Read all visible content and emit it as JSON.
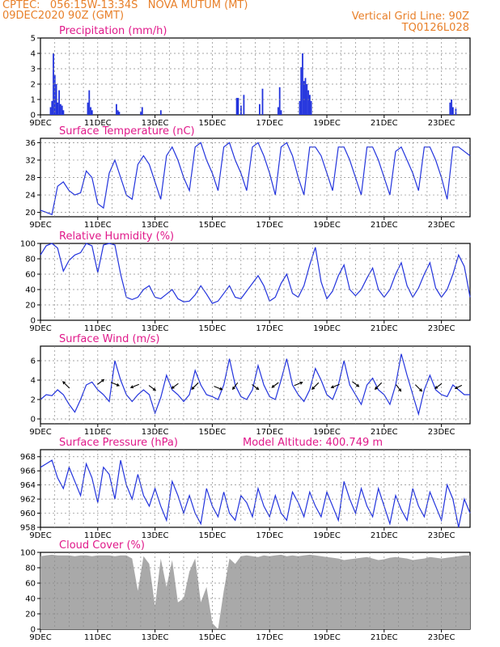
{
  "header": {
    "line1_left": "CPTEC:   056:15W-13:34S   NOVA MUTUM (MT)",
    "line2_left": "09DEC2020 90Z (GMT)",
    "line1_right": "Vertical Grid Line: 90Z",
    "line2_right": "TQ0126L028"
  },
  "colors": {
    "header": "#e8802a",
    "panel_title": "#e0198a",
    "series": "#2233dd",
    "cloud": "#a9a9a9",
    "grid": "#888888"
  },
  "x_labels": [
    "9DEC",
    "11DEC",
    "13DEC",
    "15DEC",
    "17DEC",
    "19DEC",
    "21DEC",
    "23DEC"
  ],
  "x_range_days": [
    0,
    15
  ],
  "panels": {
    "precip": {
      "title": "Precipitation (mm/h)",
      "yticks": [
        "0",
        "1",
        "2",
        "3",
        "4",
        "5"
      ]
    },
    "temp": {
      "title": "Surface Temperature (nC)",
      "yticks": [
        "20",
        "24",
        "28",
        "32",
        "36"
      ]
    },
    "rh": {
      "title": "Relative Humidity (%)",
      "yticks": [
        "0",
        "20",
        "40",
        "60",
        "80",
        "100"
      ]
    },
    "wind": {
      "title": "Surface Wind (m/s)",
      "yticks": [
        "0",
        "2",
        "4",
        "6"
      ]
    },
    "pres": {
      "title": "Surface Pressure (hPa)",
      "subtitle": "Model Altitude: 400.749 m",
      "yticks": [
        "958",
        "960",
        "962",
        "964",
        "966",
        "968"
      ]
    },
    "cloud": {
      "title": "Cloud Cover (%)",
      "yticks": [
        "0",
        "20",
        "40",
        "60",
        "80",
        "100"
      ]
    }
  },
  "chart_data": [
    {
      "type": "bar",
      "title": "Precipitation (mm/h)",
      "x_unit": "days since 09DEC2020 00Z",
      "ylim": [
        0,
        5
      ],
      "x": [
        0.35,
        0.4,
        0.45,
        0.5,
        0.55,
        0.6,
        0.65,
        0.7,
        0.75,
        0.8,
        1.65,
        1.7,
        1.75,
        1.8,
        2.65,
        2.7,
        2.75,
        3.5,
        3.55,
        4.2,
        6.85,
        6.9,
        7.0,
        7.1,
        7.65,
        7.75,
        8.3,
        8.35,
        8.4,
        9.05,
        9.1,
        9.15,
        9.2,
        9.25,
        9.3,
        9.35,
        9.4,
        9.45,
        14.3,
        14.35,
        14.4,
        14.5
      ],
      "values": [
        0.5,
        0.9,
        4.0,
        2.6,
        2.0,
        0.8,
        1.6,
        0.7,
        0.6,
        0.3,
        0.8,
        1.6,
        0.5,
        0.3,
        0.7,
        0.3,
        0.2,
        0.2,
        0.5,
        0.3,
        1.1,
        1.1,
        0.6,
        1.3,
        0.7,
        1.7,
        0.5,
        1.8,
        0.3,
        0.9,
        3.1,
        4.0,
        2.2,
        2.4,
        2.0,
        1.6,
        1.3,
        0.9,
        0.8,
        1.0,
        0.5,
        0.4
      ]
    },
    {
      "type": "line",
      "title": "Surface Temperature (nC)",
      "ylim": [
        19,
        37
      ],
      "x": [
        0,
        0.2,
        0.4,
        0.6,
        0.8,
        1.0,
        1.2,
        1.4,
        1.6,
        1.8,
        2.0,
        2.2,
        2.4,
        2.6,
        2.8,
        3.0,
        3.2,
        3.4,
        3.6,
        3.8,
        4.0,
        4.2,
        4.4,
        4.6,
        4.8,
        5.0,
        5.2,
        5.4,
        5.6,
        5.8,
        6.0,
        6.2,
        6.4,
        6.6,
        6.8,
        7.0,
        7.2,
        7.4,
        7.6,
        7.8,
        8.0,
        8.2,
        8.4,
        8.6,
        8.8,
        9.0,
        9.2,
        9.4,
        9.6,
        9.8,
        10.0,
        10.2,
        10.4,
        10.6,
        10.8,
        11.0,
        11.2,
        11.4,
        11.6,
        11.8,
        12.0,
        12.2,
        12.4,
        12.6,
        12.8,
        13.0,
        13.2,
        13.4,
        13.6,
        13.8,
        14.0,
        14.2,
        14.4,
        14.6,
        14.8,
        15.0
      ],
      "values": [
        20.5,
        20,
        19.5,
        26,
        27,
        25,
        24,
        24.5,
        29.5,
        28,
        22,
        21,
        29,
        32,
        28,
        24,
        23,
        31,
        33,
        31,
        27,
        23,
        33,
        35,
        32,
        28,
        25,
        35,
        36,
        32,
        29,
        25,
        35,
        36,
        32,
        29,
        25,
        35,
        36,
        33,
        29,
        24,
        35,
        36,
        33,
        28,
        24,
        35,
        35,
        33,
        29,
        25,
        35,
        35,
        32,
        28,
        24,
        35,
        35,
        32,
        28,
        24,
        34,
        35,
        32,
        29,
        25,
        35,
        35,
        32,
        28,
        23,
        35,
        35,
        34,
        33
      ]
    },
    {
      "type": "line",
      "title": "Relative Humidity (%)",
      "ylim": [
        0,
        100
      ],
      "x": [
        0,
        0.2,
        0.4,
        0.6,
        0.8,
        1.0,
        1.2,
        1.4,
        1.6,
        1.8,
        2.0,
        2.2,
        2.4,
        2.6,
        2.8,
        3.0,
        3.2,
        3.4,
        3.6,
        3.8,
        4.0,
        4.2,
        4.4,
        4.6,
        4.8,
        5.0,
        5.2,
        5.4,
        5.6,
        5.8,
        6.0,
        6.2,
        6.4,
        6.6,
        6.8,
        7.0,
        7.2,
        7.4,
        7.6,
        7.8,
        8.0,
        8.2,
        8.4,
        8.6,
        8.8,
        9.0,
        9.2,
        9.4,
        9.6,
        9.8,
        10.0,
        10.2,
        10.4,
        10.6,
        10.8,
        11.0,
        11.2,
        11.4,
        11.6,
        11.8,
        12.0,
        12.2,
        12.4,
        12.6,
        12.8,
        13.0,
        13.2,
        13.4,
        13.6,
        13.8,
        14.0,
        14.2,
        14.4,
        14.6,
        14.8,
        15.0
      ],
      "values": [
        85,
        97,
        100,
        94,
        64,
        78,
        85,
        88,
        100,
        97,
        62,
        98,
        100,
        98,
        60,
        30,
        27,
        30,
        40,
        45,
        30,
        28,
        34,
        40,
        28,
        24,
        25,
        33,
        45,
        34,
        22,
        25,
        35,
        45,
        30,
        28,
        38,
        48,
        58,
        45,
        25,
        30,
        48,
        60,
        35,
        30,
        45,
        72,
        95,
        50,
        28,
        38,
        58,
        72,
        40,
        32,
        40,
        55,
        68,
        40,
        30,
        40,
        60,
        75,
        45,
        30,
        42,
        60,
        75,
        42,
        30,
        40,
        60,
        85,
        70,
        30
      ]
    },
    {
      "type": "line",
      "title": "Surface Wind (m/s)",
      "ylim": [
        -0.5,
        7.5
      ],
      "x": [
        0,
        0.2,
        0.4,
        0.6,
        0.8,
        1.0,
        1.2,
        1.4,
        1.6,
        1.8,
        2.0,
        2.2,
        2.4,
        2.6,
        2.8,
        3.0,
        3.2,
        3.4,
        3.6,
        3.8,
        4.0,
        4.2,
        4.4,
        4.6,
        4.8,
        5.0,
        5.2,
        5.4,
        5.6,
        5.8,
        6.0,
        6.2,
        6.4,
        6.6,
        6.8,
        7.0,
        7.2,
        7.4,
        7.6,
        7.8,
        8.0,
        8.2,
        8.4,
        8.6,
        8.8,
        9.0,
        9.2,
        9.4,
        9.6,
        9.8,
        10.0,
        10.2,
        10.4,
        10.6,
        10.8,
        11.0,
        11.2,
        11.4,
        11.6,
        11.8,
        12.0,
        12.2,
        12.4,
        12.6,
        12.8,
        13.0,
        13.2,
        13.4,
        13.6,
        13.8,
        14.0,
        14.2,
        14.4,
        14.6,
        14.8,
        15.0
      ],
      "values": [
        2,
        2.5,
        2.4,
        3,
        2.5,
        1.5,
        0.7,
        2,
        3.5,
        3.8,
        3,
        2.5,
        1.8,
        6,
        4,
        2.5,
        1.8,
        2.5,
        3,
        2.5,
        0.6,
        2.2,
        4.5,
        3,
        2.5,
        1.8,
        2.5,
        5,
        3.5,
        2.5,
        2.3,
        2,
        3.5,
        6.2,
        3.5,
        2.3,
        2,
        3,
        5.5,
        3.5,
        2.3,
        2,
        4,
        6.2,
        3.5,
        2.5,
        1.8,
        3,
        5.2,
        4,
        2.5,
        2,
        3.5,
        6,
        3.5,
        2.5,
        1.5,
        3.5,
        4.2,
        3,
        2.5,
        1.5,
        3.5,
        6.7,
        4.5,
        2.5,
        0.5,
        3,
        4.5,
        3,
        2.5,
        2.3,
        3.5,
        3,
        2.5,
        2.5
      ]
    },
    {
      "type": "line",
      "title": "Surface Pressure (hPa)",
      "ylim": [
        958,
        969
      ],
      "x": [
        0,
        0.2,
        0.4,
        0.6,
        0.8,
        1.0,
        1.2,
        1.4,
        1.6,
        1.8,
        2.0,
        2.2,
        2.4,
        2.6,
        2.8,
        3.0,
        3.2,
        3.4,
        3.6,
        3.8,
        4.0,
        4.2,
        4.4,
        4.6,
        4.8,
        5.0,
        5.2,
        5.4,
        5.6,
        5.8,
        6.0,
        6.2,
        6.4,
        6.6,
        6.8,
        7.0,
        7.2,
        7.4,
        7.6,
        7.8,
        8.0,
        8.2,
        8.4,
        8.6,
        8.8,
        9.0,
        9.2,
        9.4,
        9.6,
        9.8,
        10.0,
        10.2,
        10.4,
        10.6,
        10.8,
        11.0,
        11.2,
        11.4,
        11.6,
        11.8,
        12.0,
        12.2,
        12.4,
        12.6,
        12.8,
        13.0,
        13.2,
        13.4,
        13.6,
        13.8,
        14.0,
        14.2,
        14.4,
        14.6,
        14.8,
        15.0
      ],
      "values": [
        966.5,
        967,
        967.5,
        965,
        963.5,
        966.5,
        964.5,
        962.5,
        967,
        965,
        961.5,
        966.5,
        965.5,
        962,
        967.5,
        964,
        962,
        965.5,
        962.5,
        961,
        963.5,
        961,
        959,
        964.5,
        962.5,
        960,
        962.5,
        960,
        958.5,
        963.5,
        961,
        959.5,
        963,
        960,
        959,
        962.5,
        961.5,
        959.5,
        963.5,
        961,
        959.5,
        962.5,
        960,
        959,
        963,
        961.5,
        959.5,
        963,
        961,
        959.5,
        963,
        961,
        959,
        964.5,
        962,
        960,
        963.5,
        961,
        959.5,
        963.5,
        961,
        958.5,
        962.5,
        960.5,
        959,
        963.5,
        961,
        959.5,
        963,
        961,
        959,
        964,
        962,
        958,
        962,
        960
      ]
    },
    {
      "type": "area",
      "title": "Cloud Cover (%)",
      "ylim": [
        0,
        100
      ],
      "x": [
        0,
        0.2,
        0.4,
        0.6,
        0.8,
        1.0,
        1.2,
        1.4,
        1.6,
        1.8,
        2.0,
        2.2,
        2.4,
        2.6,
        2.8,
        3.0,
        3.2,
        3.4,
        3.6,
        3.8,
        4.0,
        4.2,
        4.4,
        4.6,
        4.8,
        5.0,
        5.2,
        5.4,
        5.6,
        5.8,
        6.0,
        6.2,
        6.4,
        6.6,
        6.8,
        7.0,
        7.2,
        7.4,
        7.6,
        7.8,
        8.0,
        8.2,
        8.4,
        8.6,
        8.8,
        9.0,
        9.2,
        9.4,
        9.6,
        9.8,
        10.0,
        10.2,
        10.4,
        10.6,
        10.8,
        11.0,
        11.2,
        11.4,
        11.6,
        11.8,
        12.0,
        12.2,
        12.4,
        12.6,
        12.8,
        13.0,
        13.2,
        13.4,
        13.6,
        13.8,
        14.0,
        14.2,
        14.4,
        14.6,
        14.8,
        15.0
      ],
      "values": [
        95,
        96,
        97,
        96,
        96,
        96,
        95,
        96,
        96,
        95,
        96,
        96,
        96,
        95,
        96,
        96,
        92,
        50,
        95,
        85,
        30,
        92,
        55,
        90,
        35,
        40,
        75,
        92,
        35,
        55,
        8,
        0,
        50,
        92,
        85,
        95,
        96,
        95,
        94,
        96,
        95,
        96,
        97,
        95,
        96,
        95,
        96,
        97,
        96,
        95,
        94,
        93,
        92,
        90,
        91,
        92,
        93,
        94,
        92,
        90,
        91,
        93,
        94,
        93,
        92,
        90,
        91,
        92,
        94,
        93,
        92,
        93,
        94,
        95,
        96,
        96
      ]
    }
  ]
}
